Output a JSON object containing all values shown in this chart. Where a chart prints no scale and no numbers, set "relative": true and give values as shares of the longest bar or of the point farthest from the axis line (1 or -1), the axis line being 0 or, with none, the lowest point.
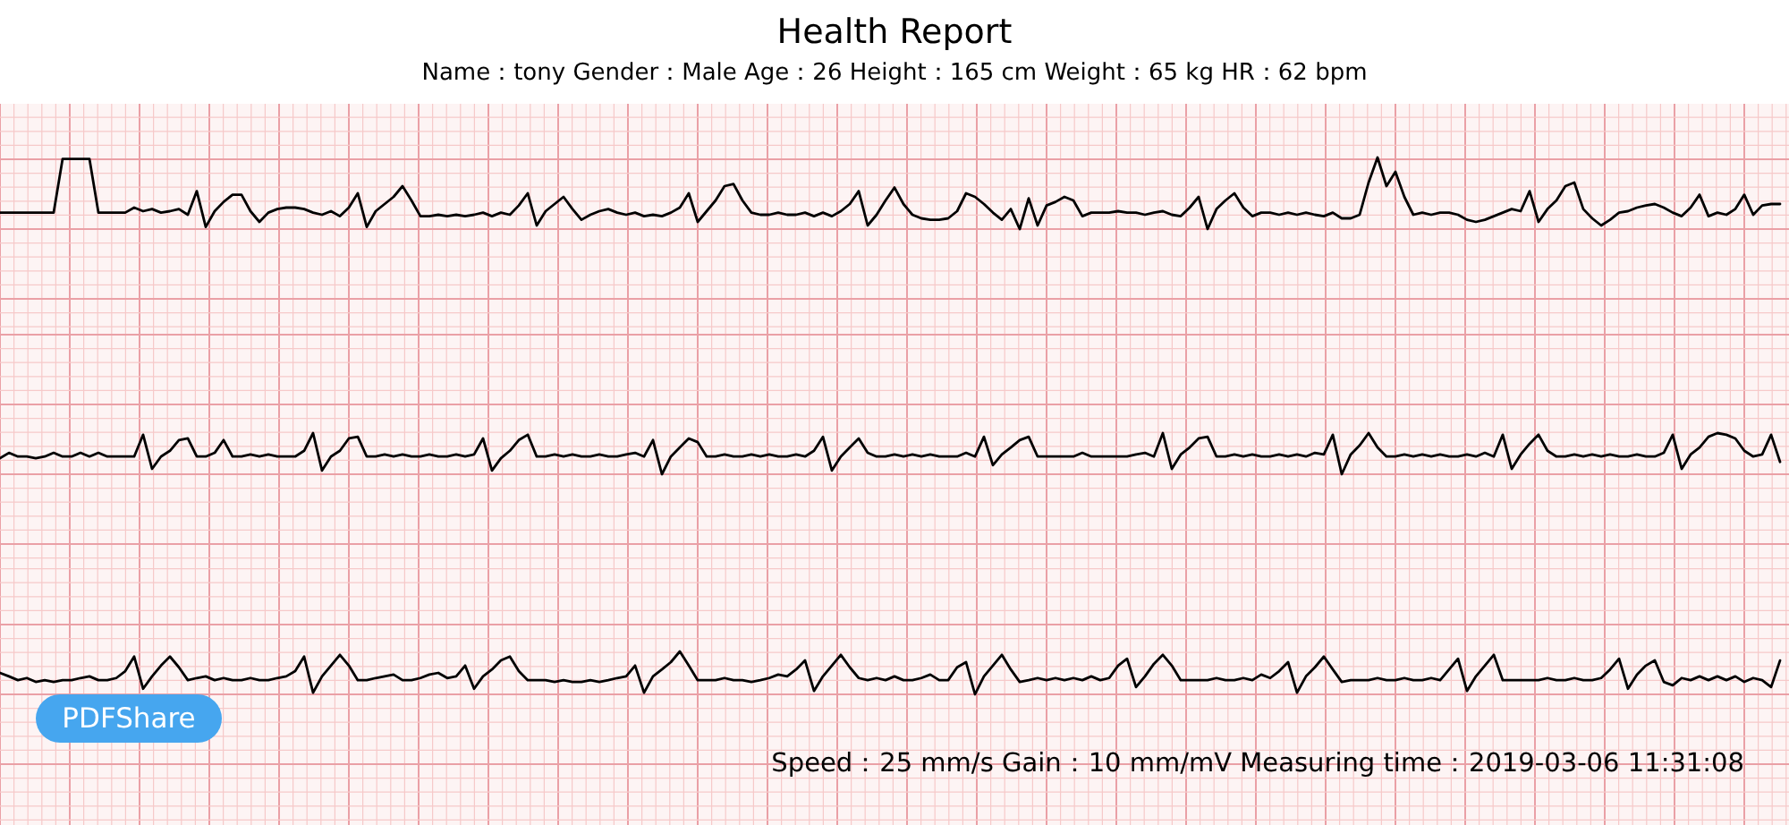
{
  "chart_data": [
    {
      "type": "line",
      "title": "Health Report",
      "subtitle": "Name：tony  Gender：Male  Age：26  Height：165 cm  Weight：65 kg  HR：62 bpm",
      "relative": true,
      "grid": true,
      "categories": [
        null,
        null,
        null,
        null,
        null,
        null,
        null,
        null,
        null,
        null,
        null,
        null,
        null,
        null,
        null,
        null,
        null,
        null,
        null,
        null,
        null,
        null,
        null,
        null,
        null,
        null,
        null,
        null,
        null,
        null,
        null,
        null,
        null,
        null,
        null,
        null,
        null,
        null,
        null,
        null,
        null,
        null,
        null,
        null,
        null,
        null,
        null,
        null,
        null,
        null,
        null,
        null,
        null,
        null,
        null,
        null,
        null,
        null,
        null,
        null,
        null,
        null,
        null,
        null,
        null,
        null,
        null,
        null,
        null,
        null,
        null,
        null,
        null,
        null,
        null,
        null,
        null,
        null,
        null,
        null,
        null,
        null,
        null,
        null,
        null,
        null,
        null,
        null,
        null,
        null,
        null,
        null,
        null,
        null,
        null,
        null,
        null,
        null,
        null,
        null,
        null,
        null,
        null,
        null,
        null,
        null,
        null,
        null,
        null,
        null,
        null,
        null,
        null,
        null,
        null,
        null,
        null,
        null,
        null,
        null,
        null,
        null,
        null,
        null,
        null,
        null,
        null,
        null,
        null,
        null,
        null,
        null,
        null,
        null,
        null,
        null,
        null,
        null,
        null,
        null,
        null,
        null,
        null,
        null,
        null,
        null,
        null,
        null,
        null,
        null,
        null,
        null,
        null,
        null,
        null,
        null,
        null,
        null,
        null,
        null,
        null,
        null,
        null,
        null,
        null,
        null,
        null,
        null,
        null,
        null,
        null,
        null,
        null,
        null,
        null,
        null,
        null,
        null,
        null,
        null,
        null,
        null,
        null,
        null,
        null,
        null,
        null,
        null,
        null,
        null,
        null,
        null,
        null,
        null,
        null,
        null,
        null,
        null,
        null,
        null
      ],
      "series": [
        {
          "color": "#000000",
          "values": [
            0.23,
            0.23,
            0.23,
            0.23,
            0.23,
            0.23,
            0.23,
            0.98,
            0.98,
            0.98,
            0.98,
            0.23,
            0.23,
            0.23,
            0.23,
            0.3,
            0.25,
            0.28,
            0.23,
            0.25,
            0.28,
            0.2,
            0.53,
            0.03,
            0.25,
            0.38,
            0.48,
            0.48,
            0.25,
            0.1,
            0.23,
            0.28,
            0.3,
            0.3,
            0.28,
            0.23,
            0.2,
            0.25,
            0.18,
            0.3,
            0.5,
            0.03,
            0.25,
            0.35,
            0.45,
            0.6,
            0.4,
            0.18,
            0.18,
            0.2,
            0.18,
            0.2,
            0.18,
            0.2,
            0.23,
            0.18,
            0.23,
            0.2,
            0.33,
            0.5,
            0.05,
            0.25,
            0.35,
            0.45,
            0.28,
            0.13,
            0.2,
            0.25,
            0.28,
            0.23,
            0.2,
            0.23,
            0.18,
            0.2,
            0.18,
            0.23,
            0.3,
            0.5,
            0.1,
            0.25,
            0.4,
            0.6,
            0.63,
            0.4,
            0.23,
            0.2,
            0.2,
            0.23,
            0.2,
            0.2,
            0.23,
            0.18,
            0.23,
            0.18,
            0.25,
            0.35,
            0.53,
            0.05,
            0.2,
            0.4,
            0.58,
            0.35,
            0.2,
            0.15,
            0.13,
            0.13,
            0.15,
            0.25,
            0.5,
            0.45,
            0.35,
            0.23,
            0.13,
            0.28,
            0,
            0.43,
            0.05,
            0.33,
            0.38,
            0.45,
            0.4,
            0.18,
            0.23,
            0.23,
            0.23,
            0.25,
            0.23,
            0.23,
            0.2,
            0.23,
            0.25,
            0.2,
            0.18,
            0.3,
            0.45,
            0,
            0.28,
            0.4,
            0.5,
            0.3,
            0.18,
            0.23,
            0.23,
            0.2,
            0.23,
            0.2,
            0.23,
            0.2,
            0.18,
            0.23,
            0.15,
            0.15,
            0.2,
            0.65,
            1,
            0.6,
            0.8,
            0.45,
            0.2,
            0.23,
            0.2,
            0.23,
            0.23,
            0.2,
            0.13,
            0.1,
            0.13,
            0.18,
            0.23,
            0.28,
            0.25,
            0.53,
            0.1,
            0.28,
            0.4,
            0.6,
            0.65,
            0.28,
            0.15,
            0.05,
            0.13,
            0.23,
            0.25,
            0.3,
            0.33,
            0.35,
            0.3,
            0.23,
            0.18,
            0.3,
            0.48,
            0.18,
            0.23,
            0.2,
            0.28,
            0.48,
            0.2,
            0.33,
            0.35,
            0.35
          ]
        }
      ]
    },
    {
      "type": "line",
      "relative": true,
      "grid": true,
      "categories": [
        null,
        null,
        null,
        null,
        null,
        null,
        null,
        null,
        null,
        null,
        null,
        null,
        null,
        null,
        null,
        null,
        null,
        null,
        null,
        null,
        null,
        null,
        null,
        null,
        null,
        null,
        null,
        null,
        null,
        null,
        null,
        null,
        null,
        null,
        null,
        null,
        null,
        null,
        null,
        null,
        null,
        null,
        null,
        null,
        null,
        null,
        null,
        null,
        null,
        null,
        null,
        null,
        null,
        null,
        null,
        null,
        null,
        null,
        null,
        null,
        null,
        null,
        null,
        null,
        null,
        null,
        null,
        null,
        null,
        null,
        null,
        null,
        null,
        null,
        null,
        null,
        null,
        null,
        null,
        null,
        null,
        null,
        null,
        null,
        null,
        null,
        null,
        null,
        null,
        null,
        null,
        null,
        null,
        null,
        null,
        null,
        null,
        null,
        null,
        null,
        null,
        null,
        null,
        null,
        null,
        null,
        null,
        null,
        null,
        null,
        null,
        null,
        null,
        null,
        null,
        null,
        null,
        null,
        null,
        null,
        null,
        null,
        null,
        null,
        null,
        null,
        null,
        null,
        null,
        null,
        null,
        null,
        null,
        null,
        null,
        null,
        null,
        null,
        null,
        null,
        null,
        null,
        null,
        null,
        null,
        null,
        null,
        null,
        null,
        null,
        null,
        null,
        null,
        null,
        null,
        null,
        null,
        null,
        null,
        null,
        null,
        null,
        null,
        null,
        null,
        null,
        null,
        null,
        null,
        null,
        null,
        null,
        null,
        null,
        null,
        null,
        null,
        null,
        null,
        null,
        null,
        null,
        null,
        null,
        null,
        null,
        null,
        null,
        null,
        null,
        null,
        null,
        null,
        null,
        null,
        null,
        null,
        null,
        null,
        null
      ],
      "series": [
        {
          "color": "#000000",
          "values": [
            0.39,
            0.52,
            0.43,
            0.43,
            0.39,
            0.43,
            0.52,
            0.43,
            0.43,
            0.52,
            0.43,
            0.52,
            0.43,
            0.43,
            0.43,
            0.43,
            0.96,
            0.13,
            0.43,
            0.57,
            0.83,
            0.87,
            0.43,
            0.43,
            0.52,
            0.83,
            0.43,
            0.43,
            0.48,
            0.43,
            0.48,
            0.43,
            0.43,
            0.43,
            0.57,
            1,
            0.09,
            0.43,
            0.57,
            0.87,
            0.91,
            0.43,
            0.43,
            0.48,
            0.43,
            0.48,
            0.43,
            0.43,
            0.48,
            0.43,
            0.43,
            0.48,
            0.43,
            0.48,
            0.87,
            0.09,
            0.39,
            0.57,
            0.83,
            0.96,
            0.43,
            0.43,
            0.48,
            0.43,
            0.48,
            0.43,
            0.43,
            0.48,
            0.43,
            0.43,
            0.48,
            0.52,
            0.43,
            0.83,
            0,
            0.43,
            0.65,
            0.87,
            0.78,
            0.43,
            0.43,
            0.48,
            0.43,
            0.43,
            0.48,
            0.43,
            0.48,
            0.43,
            0.43,
            0.48,
            0.43,
            0.57,
            0.91,
            0.09,
            0.43,
            0.65,
            0.87,
            0.52,
            0.43,
            0.43,
            0.48,
            0.43,
            0.48,
            0.43,
            0.48,
            0.43,
            0.43,
            0.43,
            0.52,
            0.43,
            0.91,
            0.22,
            0.48,
            0.65,
            0.83,
            0.91,
            0.43,
            0.43,
            0.43,
            0.43,
            0.43,
            0.52,
            0.43,
            0.43,
            0.43,
            0.43,
            0.43,
            0.48,
            0.52,
            0.43,
            1,
            0.13,
            0.48,
            0.65,
            0.87,
            0.91,
            0.43,
            0.43,
            0.48,
            0.43,
            0.48,
            0.43,
            0.43,
            0.48,
            0.43,
            0.48,
            0.43,
            0.52,
            0.48,
            0.96,
            0,
            0.48,
            0.7,
            1,
            0.65,
            0.43,
            0.43,
            0.48,
            0.43,
            0.48,
            0.43,
            0.48,
            0.43,
            0.43,
            0.48,
            0.43,
            0.52,
            0.43,
            0.96,
            0.13,
            0.48,
            0.74,
            0.96,
            0.57,
            0.43,
            0.43,
            0.48,
            0.43,
            0.48,
            0.43,
            0.48,
            0.43,
            0.43,
            0.48,
            0.43,
            0.43,
            0.52,
            0.96,
            0.13,
            0.48,
            0.65,
            0.91,
            1,
            0.96,
            0.87,
            0.57,
            0.43,
            0.48,
            0.96,
            0.3
          ]
        }
      ]
    },
    {
      "type": "line",
      "relative": true,
      "grid": true,
      "annotations": [
        "Speed：25 mm/s  Gain：10 mm/mV  Measuring time：2019-03-06 11:31:08",
        "PDFShare"
      ],
      "categories": [
        null,
        null,
        null,
        null,
        null,
        null,
        null,
        null,
        null,
        null,
        null,
        null,
        null,
        null,
        null,
        null,
        null,
        null,
        null,
        null,
        null,
        null,
        null,
        null,
        null,
        null,
        null,
        null,
        null,
        null,
        null,
        null,
        null,
        null,
        null,
        null,
        null,
        null,
        null,
        null,
        null,
        null,
        null,
        null,
        null,
        null,
        null,
        null,
        null,
        null,
        null,
        null,
        null,
        null,
        null,
        null,
        null,
        null,
        null,
        null,
        null,
        null,
        null,
        null,
        null,
        null,
        null,
        null,
        null,
        null,
        null,
        null,
        null,
        null,
        null,
        null,
        null,
        null,
        null,
        null,
        null,
        null,
        null,
        null,
        null,
        null,
        null,
        null,
        null,
        null,
        null,
        null,
        null,
        null,
        null,
        null,
        null,
        null,
        null,
        null,
        null,
        null,
        null,
        null,
        null,
        null,
        null,
        null,
        null,
        null,
        null,
        null,
        null,
        null,
        null,
        null,
        null,
        null,
        null,
        null,
        null,
        null,
        null,
        null,
        null,
        null,
        null,
        null,
        null,
        null,
        null,
        null,
        null,
        null,
        null,
        null,
        null,
        null,
        null,
        null,
        null,
        null,
        null,
        null,
        null,
        null,
        null,
        null,
        null,
        null,
        null,
        null,
        null,
        null,
        null,
        null,
        null,
        null,
        null,
        null,
        null,
        null,
        null,
        null,
        null,
        null,
        null,
        null,
        null,
        null,
        null,
        null,
        null,
        null,
        null,
        null,
        null,
        null,
        null,
        null,
        null,
        null,
        null,
        null,
        null,
        null,
        null,
        null,
        null,
        null,
        null,
        null,
        null,
        null,
        null,
        null,
        null,
        null,
        null,
        null
      ],
      "series": [
        {
          "color": "#000000",
          "values": [
            0.5,
            0.42,
            0.33,
            0.38,
            0.29,
            0.33,
            0.29,
            0.33,
            0.33,
            0.38,
            0.42,
            0.33,
            0.33,
            0.38,
            0.54,
            0.88,
            0.13,
            0.42,
            0.67,
            0.88,
            0.63,
            0.33,
            0.38,
            0.42,
            0.33,
            0.38,
            0.33,
            0.33,
            0.38,
            0.33,
            0.33,
            0.38,
            0.42,
            0.54,
            0.88,
            0.04,
            0.42,
            0.67,
            0.92,
            0.67,
            0.33,
            0.33,
            0.38,
            0.42,
            0.46,
            0.33,
            0.33,
            0.38,
            0.46,
            0.5,
            0.38,
            0.42,
            0.67,
            0.13,
            0.42,
            0.58,
            0.79,
            0.88,
            0.54,
            0.33,
            0.33,
            0.33,
            0.29,
            0.33,
            0.29,
            0.29,
            0.33,
            0.29,
            0.33,
            0.38,
            0.42,
            0.67,
            0.04,
            0.42,
            0.58,
            0.75,
            1,
            0.67,
            0.33,
            0.33,
            0.33,
            0.38,
            0.33,
            0.33,
            0.29,
            0.33,
            0.38,
            0.46,
            0.42,
            0.58,
            0.79,
            0.08,
            0.42,
            0.67,
            0.92,
            0.63,
            0.38,
            0.33,
            0.38,
            0.33,
            0.42,
            0.33,
            0.33,
            0.38,
            0.46,
            0.33,
            0.33,
            0.63,
            0.75,
            0,
            0.42,
            0.67,
            0.92,
            0.58,
            0.29,
            0.33,
            0.38,
            0.33,
            0.38,
            0.33,
            0.38,
            0.33,
            0.42,
            0.33,
            0.38,
            0.67,
            0.83,
            0.17,
            0.42,
            0.71,
            0.92,
            0.67,
            0.33,
            0.33,
            0.33,
            0.33,
            0.38,
            0.33,
            0.33,
            0.38,
            0.33,
            0.46,
            0.38,
            0.54,
            0.75,
            0.04,
            0.42,
            0.63,
            0.88,
            0.58,
            0.29,
            0.33,
            0.33,
            0.33,
            0.38,
            0.33,
            0.33,
            0.38,
            0.33,
            0.33,
            0.38,
            0.33,
            0.58,
            0.83,
            0.08,
            0.42,
            0.67,
            0.92,
            0.33,
            0.33,
            0.33,
            0.33,
            0.33,
            0.38,
            0.33,
            0.33,
            0.38,
            0.33,
            0.33,
            0.38,
            0.58,
            0.83,
            0.13,
            0.46,
            0.67,
            0.79,
            0.29,
            0.21,
            0.38,
            0.33,
            0.42,
            0.33,
            0.42,
            0.33,
            0.42,
            0.29,
            0.38,
            0.33,
            0.17,
            0.79
          ]
        }
      ]
    }
  ]
}
